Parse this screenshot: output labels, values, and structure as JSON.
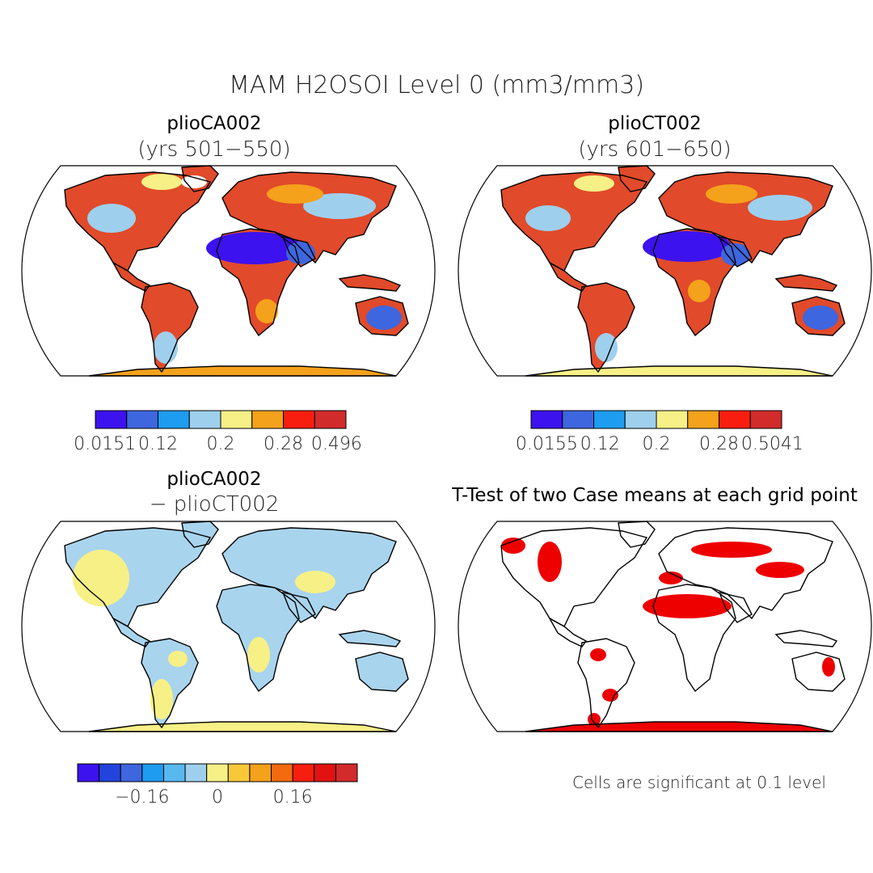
{
  "figure": {
    "title": "MAM H2OSOI Level 0 (mm3/mm3)"
  },
  "panels": [
    {
      "id": "case1",
      "title": "plioCA002",
      "subtitle": "(yrs 501−550)",
      "colorbar": {
        "colors": [
          "#3c12ee",
          "#3e66df",
          "#1e9cf0",
          "#9ed0ee",
          "#f7f086",
          "#f4a11b",
          "#f81e0f",
          "#d22b2b"
        ],
        "labels": [
          "0.0151",
          "0.12",
          "0.2",
          "0.28",
          "0.496"
        ]
      }
    },
    {
      "id": "case2",
      "title": "plioCT002",
      "subtitle": "(yrs 601−650)",
      "colorbar": {
        "colors": [
          "#3c12ee",
          "#3e66df",
          "#1e9cf0",
          "#9ed0ee",
          "#f7f086",
          "#f4a11b",
          "#f81e0f",
          "#d22b2b"
        ],
        "labels": [
          "0.0155",
          "0.12",
          "0.2",
          "0.28",
          "0.5041"
        ]
      }
    },
    {
      "id": "diff",
      "title": "plioCA002",
      "subtitle": "− plioCT002",
      "colorbar": {
        "colors": [
          "#3c12ee",
          "#2244dd",
          "#3e66df",
          "#1e9cf0",
          "#58b8f0",
          "#9ed0ee",
          "#f7f086",
          "#f8c838",
          "#f4a11b",
          "#f46a10",
          "#f81e0f",
          "#e31212",
          "#d22b2b"
        ],
        "labels": [
          "−0.16",
          "0",
          "0.16"
        ]
      }
    },
    {
      "id": "ttest",
      "title": "T-Test of two Case means at each grid point",
      "footnote": "Cells are significant at 0.1 level"
    }
  ],
  "colors": {
    "land_fill_case": "#e14a2a",
    "desert_blue": "#3c12ee",
    "diff_land": "#a9d4ee",
    "diff_yellow": "#f7f086",
    "ttest_red": "#ee0000",
    "coast": "#000000"
  }
}
